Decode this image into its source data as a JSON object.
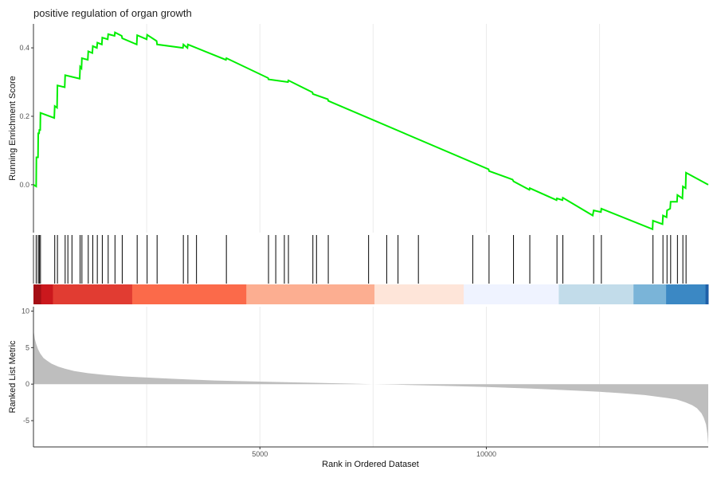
{
  "chart_data": [
    {
      "type": "line",
      "panel": "running-enrichment-score",
      "title": "positive regulation of organ growth",
      "ylabel": "Running Enrichment Score",
      "xlim": [
        0,
        14900
      ],
      "ylim": [
        -0.14,
        0.47
      ],
      "yticks": [
        0.0,
        0.2,
        0.4
      ],
      "ytick_labels": [
        "0.0",
        "0.2",
        "0.4"
      ],
      "grid": "vertical",
      "line_color": "#00ee00",
      "x": [
        0,
        60,
        65,
        100,
        105,
        125,
        130,
        150,
        155,
        460,
        470,
        520,
        530,
        690,
        700,
        1020,
        1030,
        1060,
        1070,
        1200,
        1210,
        1300,
        1310,
        1400,
        1410,
        1510,
        1520,
        1640,
        1650,
        1790,
        1800,
        1950,
        1960,
        2280,
        2290,
        2500,
        2510,
        2720,
        2730,
        3300,
        3310,
        3400,
        3410,
        4250,
        4260,
        5180,
        5190,
        5620,
        5630,
        6160,
        6170,
        6500,
        6510,
        10050,
        10060,
        10580,
        10600,
        10950,
        10960,
        11550,
        11560,
        11680,
        11690,
        12350,
        12370,
        12530,
        12540,
        13670,
        13680,
        13890,
        13900,
        13980,
        13990,
        14060,
        14070,
        14210,
        14220,
        14330,
        14340,
        14400,
        14410,
        14900
      ],
      "y": [
        0.0,
        -0.005,
        0.08,
        0.08,
        0.15,
        0.15,
        0.16,
        0.16,
        0.21,
        0.195,
        0.23,
        0.225,
        0.29,
        0.285,
        0.32,
        0.31,
        0.345,
        0.34,
        0.37,
        0.365,
        0.39,
        0.385,
        0.405,
        0.4,
        0.415,
        0.41,
        0.43,
        0.425,
        0.44,
        0.435,
        0.445,
        0.435,
        0.428,
        0.41,
        0.437,
        0.425,
        0.438,
        0.42,
        0.41,
        0.4,
        0.41,
        0.4,
        0.41,
        0.365,
        0.37,
        0.312,
        0.308,
        0.3,
        0.305,
        0.27,
        0.265,
        0.25,
        0.245,
        0.045,
        0.04,
        0.015,
        0.01,
        -0.015,
        -0.01,
        -0.045,
        -0.04,
        -0.045,
        -0.038,
        -0.09,
        -0.075,
        -0.08,
        -0.07,
        -0.13,
        -0.105,
        -0.115,
        -0.09,
        -0.095,
        -0.075,
        -0.07,
        -0.05,
        -0.05,
        -0.03,
        -0.04,
        -0.005,
        -0.01,
        0.035,
        0.0
      ]
    },
    {
      "type": "rug",
      "panel": "hit-positions",
      "x": [
        60,
        105,
        130,
        155,
        470,
        530,
        700,
        760,
        850,
        1030,
        1070,
        1210,
        1310,
        1410,
        1520,
        1650,
        1800,
        1960,
        2290,
        2510,
        2730,
        3310,
        3410,
        3600,
        4260,
        5190,
        5350,
        5540,
        5630,
        6170,
        6250,
        6510,
        7400,
        7800,
        8050,
        8500,
        9700,
        10060,
        10600,
        10960,
        11560,
        11690,
        12370,
        12540,
        13680,
        13900,
        13990,
        14070,
        14220,
        14340,
        14410
      ]
    },
    {
      "type": "heatmap",
      "panel": "rank-color-bar",
      "segments": [
        {
          "from": 0,
          "to": 170,
          "color": "#a50f15"
        },
        {
          "from": 170,
          "to": 430,
          "color": "#cb181d"
        },
        {
          "from": 430,
          "to": 2180,
          "color": "#e13c32"
        },
        {
          "from": 2180,
          "to": 4700,
          "color": "#fb6a4a"
        },
        {
          "from": 4700,
          "to": 7530,
          "color": "#fcae91"
        },
        {
          "from": 7530,
          "to": 9500,
          "color": "#fee5d9"
        },
        {
          "from": 9500,
          "to": 11600,
          "color": "#eff3ff"
        },
        {
          "from": 11600,
          "to": 13250,
          "color": "#c2dcea"
        },
        {
          "from": 13250,
          "to": 13970,
          "color": "#7ab4d8"
        },
        {
          "from": 13970,
          "to": 14840,
          "color": "#3b88c4"
        },
        {
          "from": 14840,
          "to": 14900,
          "color": "#1f5fa8"
        }
      ]
    },
    {
      "type": "area",
      "panel": "ranked-list-metric",
      "xlabel": "Rank in Ordered Dataset",
      "ylabel": "Ranked List Metric",
      "xlim": [
        0,
        14900
      ],
      "ylim": [
        -8.6,
        10.6
      ],
      "xticks": [
        5000,
        10000
      ],
      "xtick_labels": [
        "5000",
        "10000"
      ],
      "yticks": [
        -5,
        0,
        5,
        10
      ],
      "ytick_labels": [
        "-5",
        "0",
        "5",
        "10"
      ],
      "fill_color": "#bebebe",
      "x": [
        0,
        10,
        30,
        60,
        100,
        150,
        220,
        300,
        400,
        550,
        700,
        900,
        1200,
        1600,
        2000,
        2500,
        3000,
        3500,
        4000,
        5000,
        6000,
        7000,
        7500,
        8000,
        9000,
        10000,
        11000,
        12000,
        12500,
        13000,
        13500,
        14000,
        14200,
        14400,
        14550,
        14650,
        14750,
        14800,
        14850,
        14880,
        14900
      ],
      "y": [
        7.6,
        7.0,
        6.2,
        5.5,
        4.8,
        4.2,
        3.6,
        3.2,
        2.8,
        2.4,
        2.1,
        1.8,
        1.5,
        1.25,
        1.05,
        0.9,
        0.75,
        0.62,
        0.5,
        0.35,
        0.2,
        0.07,
        0.0,
        -0.07,
        -0.22,
        -0.4,
        -0.6,
        -0.9,
        -1.05,
        -1.25,
        -1.5,
        -1.9,
        -2.1,
        -2.5,
        -2.9,
        -3.3,
        -4.0,
        -4.6,
        -5.5,
        -6.8,
        -8.3
      ]
    }
  ]
}
